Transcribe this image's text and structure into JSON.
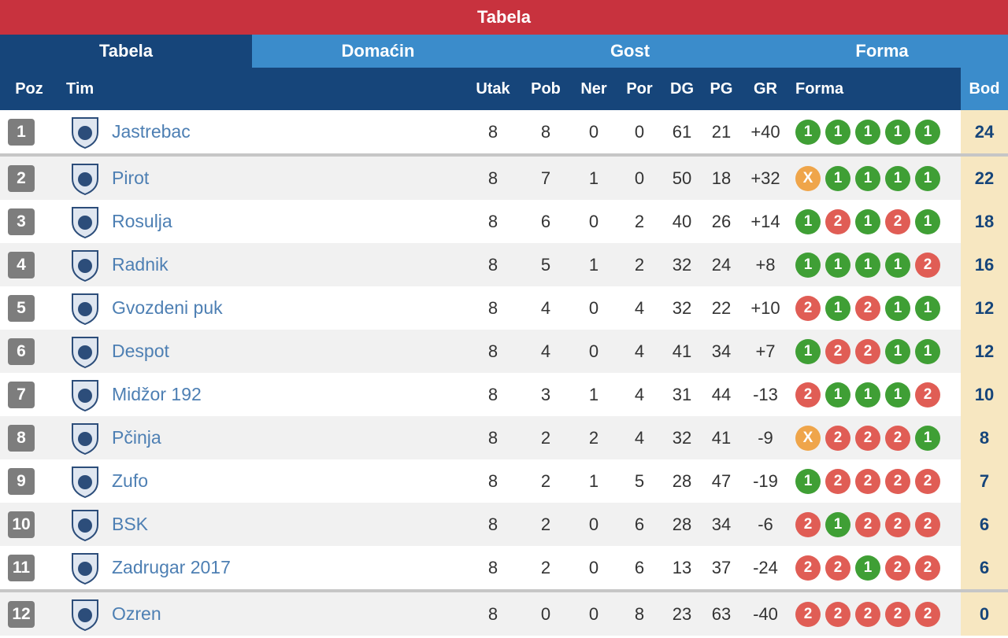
{
  "title": "Tabela",
  "tabs": [
    {
      "label": "Tabela",
      "active": true
    },
    {
      "label": "Domaćin",
      "active": false
    },
    {
      "label": "Gost",
      "active": false
    },
    {
      "label": "Forma",
      "active": false
    }
  ],
  "columns": {
    "poz": "Poz",
    "tim": "Tim",
    "utak": "Utak",
    "pob": "Pob",
    "ner": "Ner",
    "por": "Por",
    "dg": "DG",
    "pg": "PG",
    "gr": "GR",
    "forma": "Forma",
    "bod": "Bod"
  },
  "colors": {
    "title_bar": "#c8323e",
    "header": "#16457a",
    "tab_bar": "#3b8ccb",
    "win": "#3f9f35",
    "loss": "#e05d55",
    "draw": "#efa54a",
    "points_column": "#f7e7c1"
  },
  "rows": [
    {
      "pos": "1",
      "team": "Jastrebac",
      "logo": "shield-logo-icon",
      "utak": "8",
      "pob": "8",
      "ner": "0",
      "por": "0",
      "dg": "61",
      "pg": "21",
      "gr": "+40",
      "form": [
        "1",
        "1",
        "1",
        "1",
        "1"
      ],
      "bod": "24"
    },
    {
      "pos": "2",
      "team": "Pirot",
      "logo": "shield-logo-icon",
      "utak": "8",
      "pob": "7",
      "ner": "1",
      "por": "0",
      "dg": "50",
      "pg": "18",
      "gr": "+32",
      "form": [
        "X",
        "1",
        "1",
        "1",
        "1"
      ],
      "bod": "22"
    },
    {
      "pos": "3",
      "team": "Rosulja",
      "logo": "shield-logo-icon",
      "utak": "8",
      "pob": "6",
      "ner": "0",
      "por": "2",
      "dg": "40",
      "pg": "26",
      "gr": "+14",
      "form": [
        "1",
        "2",
        "1",
        "2",
        "1"
      ],
      "bod": "18"
    },
    {
      "pos": "4",
      "team": "Radnik",
      "logo": "shield-logo-icon",
      "utak": "8",
      "pob": "5",
      "ner": "1",
      "por": "2",
      "dg": "32",
      "pg": "24",
      "gr": "+8",
      "form": [
        "1",
        "1",
        "1",
        "1",
        "2"
      ],
      "bod": "16"
    },
    {
      "pos": "5",
      "team": "Gvozdeni puk",
      "logo": "shield-logo-icon",
      "utak": "8",
      "pob": "4",
      "ner": "0",
      "por": "4",
      "dg": "32",
      "pg": "22",
      "gr": "+10",
      "form": [
        "2",
        "1",
        "2",
        "1",
        "1"
      ],
      "bod": "12"
    },
    {
      "pos": "6",
      "team": "Despot",
      "logo": "shield-logo-icon",
      "utak": "8",
      "pob": "4",
      "ner": "0",
      "por": "4",
      "dg": "41",
      "pg": "34",
      "gr": "+7",
      "form": [
        "1",
        "2",
        "2",
        "1",
        "1"
      ],
      "bod": "12"
    },
    {
      "pos": "7",
      "team": "Midžor 192",
      "logo": "shield-logo-icon",
      "utak": "8",
      "pob": "3",
      "ner": "1",
      "por": "4",
      "dg": "31",
      "pg": "44",
      "gr": "-13",
      "form": [
        "2",
        "1",
        "1",
        "1",
        "2"
      ],
      "bod": "10"
    },
    {
      "pos": "8",
      "team": "Pčinja",
      "logo": "shield-logo-icon",
      "utak": "8",
      "pob": "2",
      "ner": "2",
      "por": "4",
      "dg": "32",
      "pg": "41",
      "gr": "-9",
      "form": [
        "X",
        "2",
        "2",
        "2",
        "1"
      ],
      "bod": "8"
    },
    {
      "pos": "9",
      "team": "Zufo",
      "logo": "shield-logo-icon",
      "utak": "8",
      "pob": "2",
      "ner": "1",
      "por": "5",
      "dg": "28",
      "pg": "47",
      "gr": "-19",
      "form": [
        "1",
        "2",
        "2",
        "2",
        "2"
      ],
      "bod": "7"
    },
    {
      "pos": "10",
      "team": "BSK",
      "logo": "shield-logo-icon",
      "utak": "8",
      "pob": "2",
      "ner": "0",
      "por": "6",
      "dg": "28",
      "pg": "34",
      "gr": "-6",
      "form": [
        "2",
        "1",
        "2",
        "2",
        "2"
      ],
      "bod": "6"
    },
    {
      "pos": "11",
      "team": "Zadrugar 2017",
      "logo": "shield-logo-icon",
      "utak": "8",
      "pob": "2",
      "ner": "0",
      "por": "6",
      "dg": "13",
      "pg": "37",
      "gr": "-24",
      "form": [
        "2",
        "2",
        "1",
        "2",
        "2"
      ],
      "bod": "6"
    },
    {
      "pos": "12",
      "team": "Ozren",
      "logo": "shield-logo-icon",
      "utak": "8",
      "pob": "0",
      "ner": "0",
      "por": "8",
      "dg": "23",
      "pg": "63",
      "gr": "-40",
      "form": [
        "2",
        "2",
        "2",
        "2",
        "2"
      ],
      "bod": "0"
    }
  ]
}
